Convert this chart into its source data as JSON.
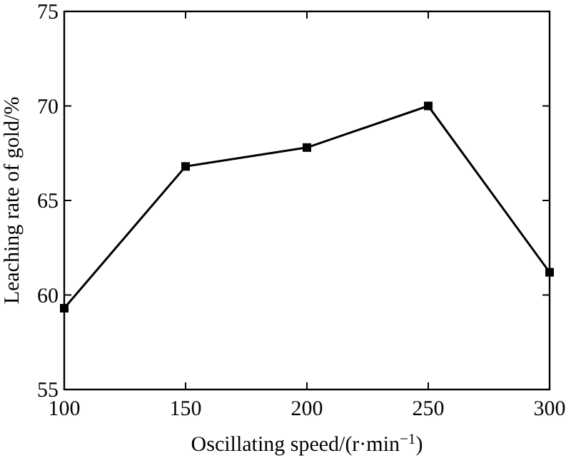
{
  "chart_data": {
    "type": "line",
    "xlabel": "Oscillating speed/(r·min$^{−1}$)",
    "ylabel": "Leaching rate of gold/%",
    "x": [
      100,
      150,
      200,
      250,
      300
    ],
    "series": [
      {
        "color": "#000000",
        "values": [
          59.3,
          66.8,
          67.8,
          70.0,
          61.2
        ]
      }
    ],
    "xlim": [
      100,
      300
    ],
    "xticks": [
      100,
      150,
      200,
      250,
      300
    ],
    "ylim": [
      55,
      75
    ],
    "yticks": [
      55,
      60,
      65,
      70,
      75
    ],
    "marker": "square",
    "line_style": "solid"
  }
}
